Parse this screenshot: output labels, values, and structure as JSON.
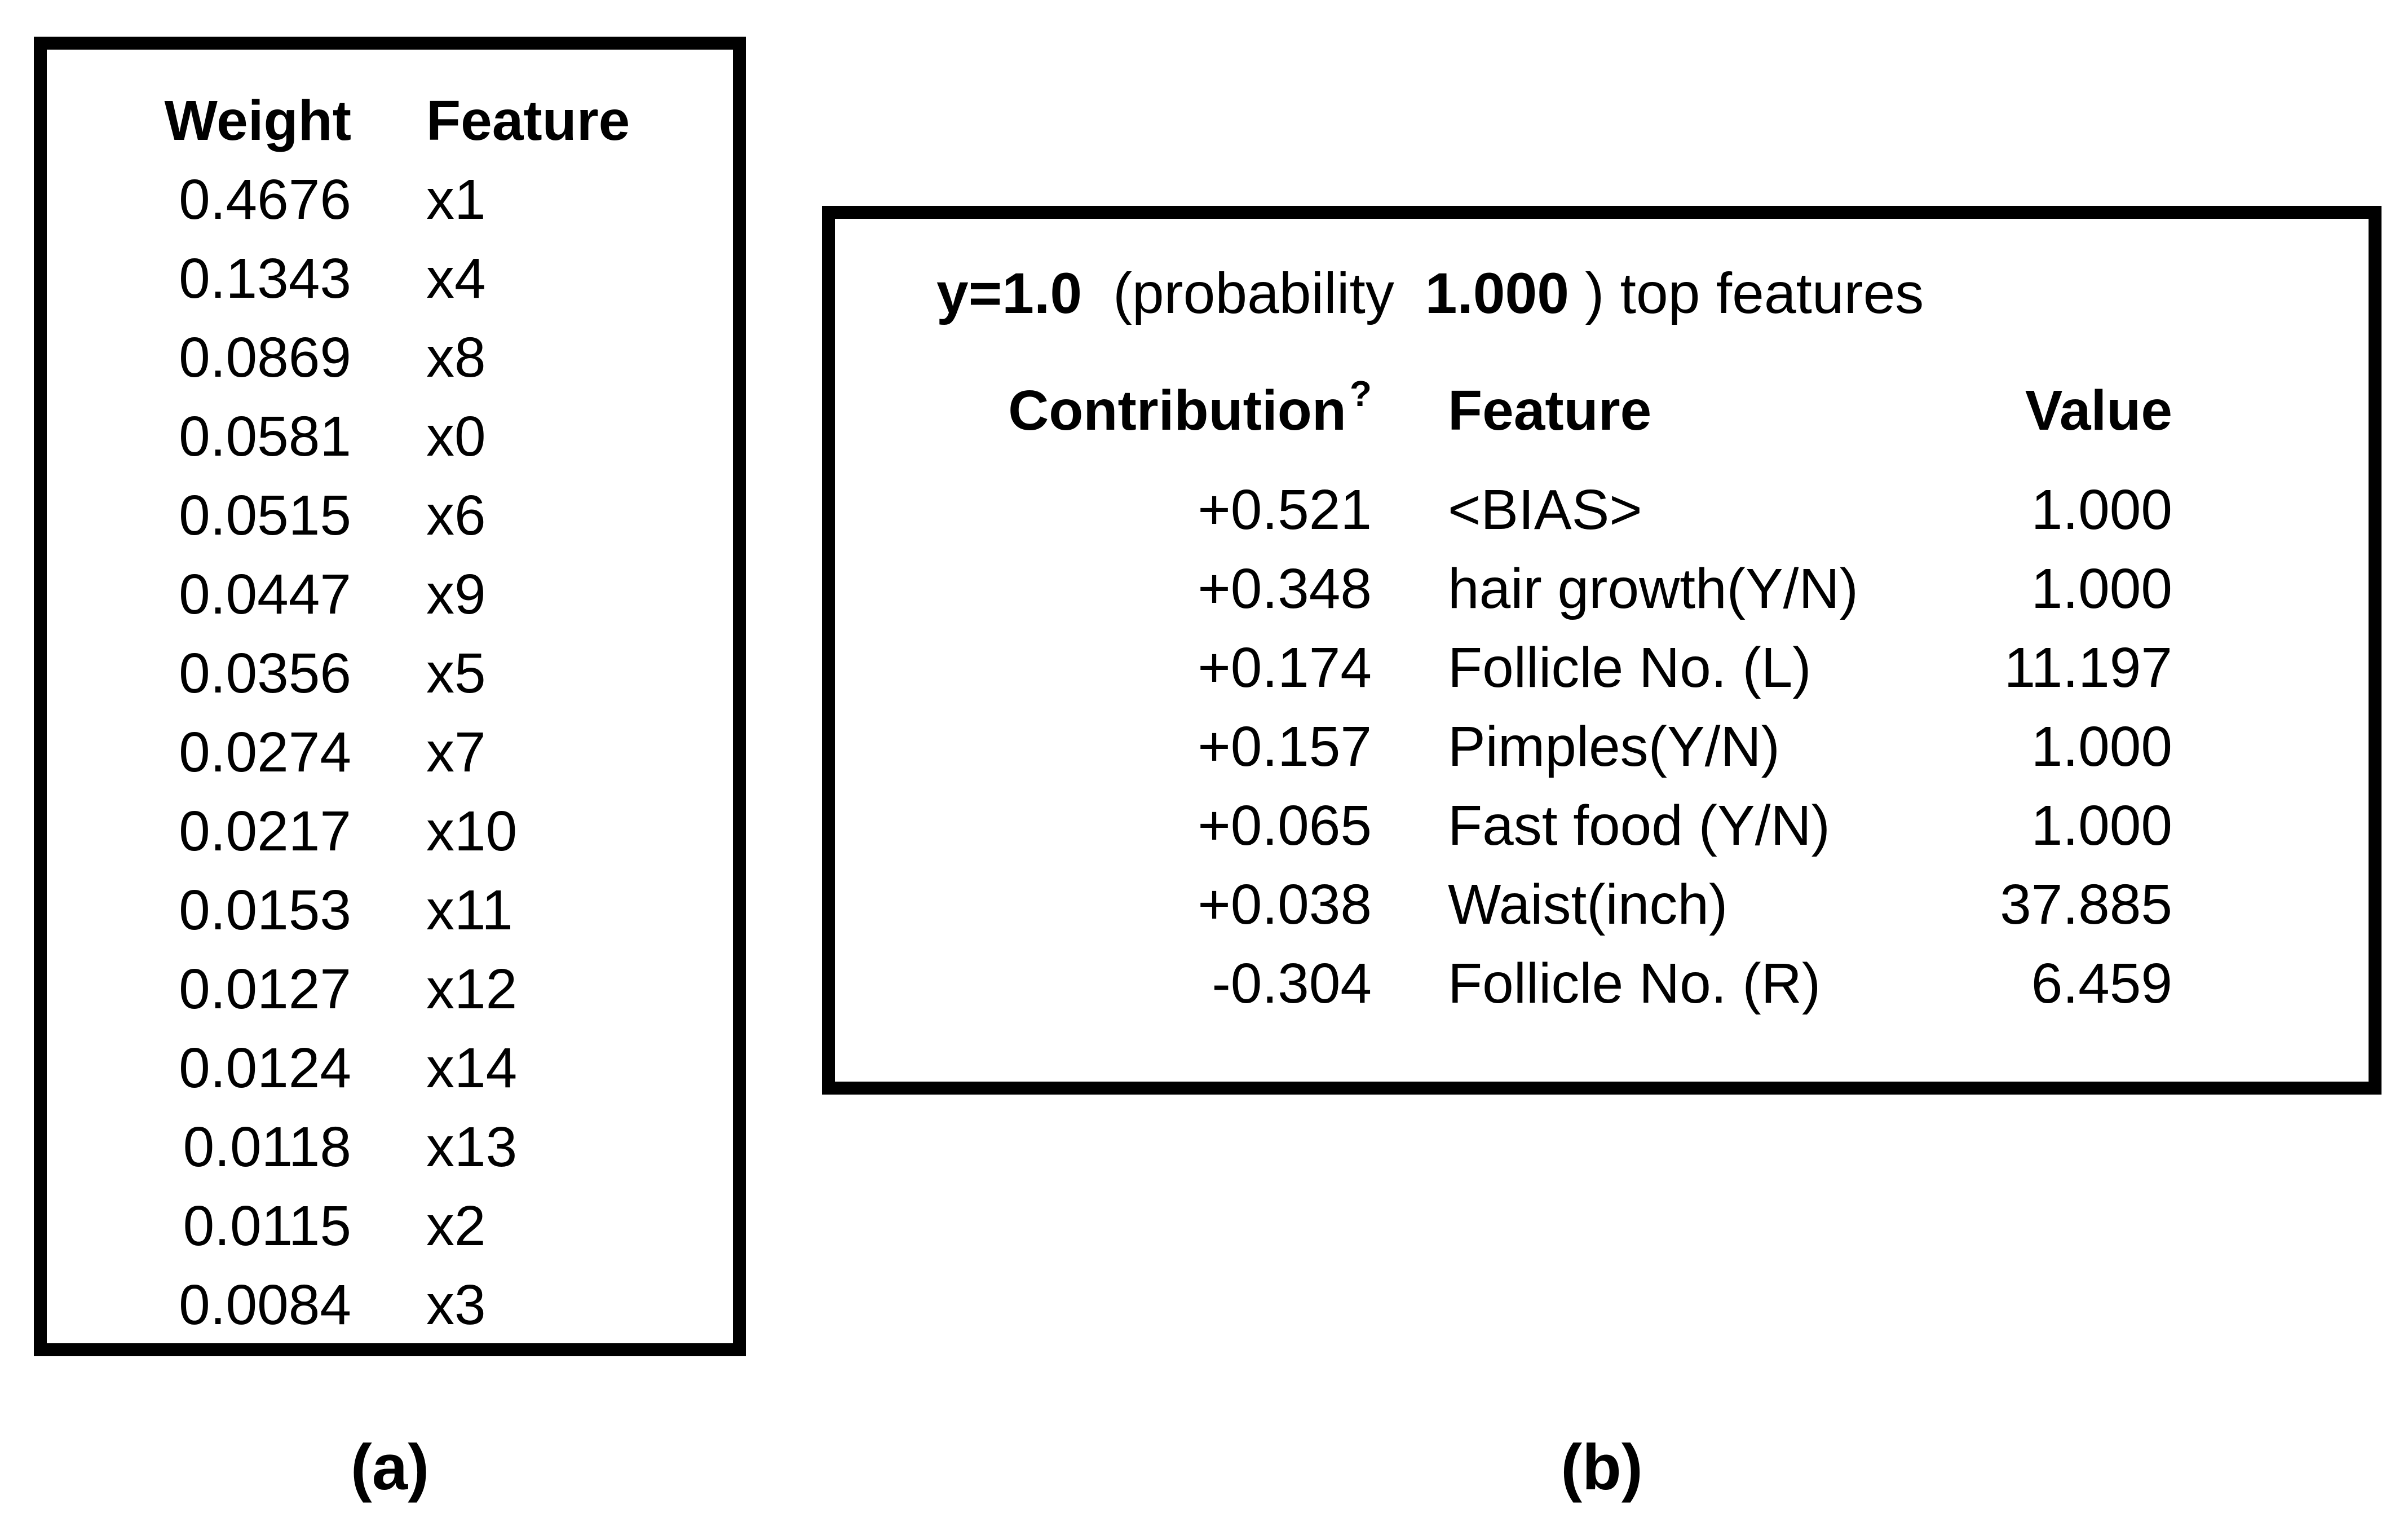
{
  "figure": {
    "background_color": "#ffffff",
    "text_color": "#000000",
    "border_color": "#000000"
  },
  "panel_a": {
    "caption": "(a)",
    "headers": {
      "weight": "Weight",
      "feature": "Feature"
    },
    "rows": [
      {
        "weight": "0.4676",
        "feature": "x1"
      },
      {
        "weight": "0.1343",
        "feature": "x4"
      },
      {
        "weight": "0.0869",
        "feature": "x8"
      },
      {
        "weight": "0.0581",
        "feature": "x0"
      },
      {
        "weight": "0.0515",
        "feature": "x6"
      },
      {
        "weight": "0.0447",
        "feature": "x9"
      },
      {
        "weight": "0.0356",
        "feature": "x5"
      },
      {
        "weight": "0.0274",
        "feature": "x7"
      },
      {
        "weight": "0.0217",
        "feature": "x10"
      },
      {
        "weight": "0.0153",
        "feature": "x11"
      },
      {
        "weight": "0.0127",
        "feature": "x12"
      },
      {
        "weight": "0.0124",
        "feature": "x14"
      },
      {
        "weight": "0.0118",
        "feature": "x13"
      },
      {
        "weight": "0.0115",
        "feature": "x2"
      },
      {
        "weight": "0.0084",
        "feature": "x3"
      }
    ]
  },
  "panel_b": {
    "caption": "(b)",
    "title": {
      "prediction": "y=1.0",
      "mid": "(probability",
      "probability": "1.000",
      "suffix": ") top features"
    },
    "headers": {
      "contribution": "Contribution",
      "help": "?",
      "feature": "Feature",
      "value": "Value"
    },
    "rows": [
      {
        "contribution": "+0.521",
        "feature": "<BIAS>",
        "value": "1.000"
      },
      {
        "contribution": "+0.348",
        "feature": "hair growth(Y/N)",
        "value": "1.000"
      },
      {
        "contribution": "+0.174",
        "feature": "Follicle No. (L)",
        "value": "11.197"
      },
      {
        "contribution": "+0.157",
        "feature": "Pimples(Y/N)",
        "value": "1.000"
      },
      {
        "contribution": "+0.065",
        "feature": "Fast food (Y/N)",
        "value": "1.000"
      },
      {
        "contribution": "+0.038",
        "feature": "Waist(inch)",
        "value": "37.885"
      },
      {
        "contribution": "-0.304",
        "feature": "Follicle No. (R)",
        "value": "6.459"
      }
    ]
  }
}
